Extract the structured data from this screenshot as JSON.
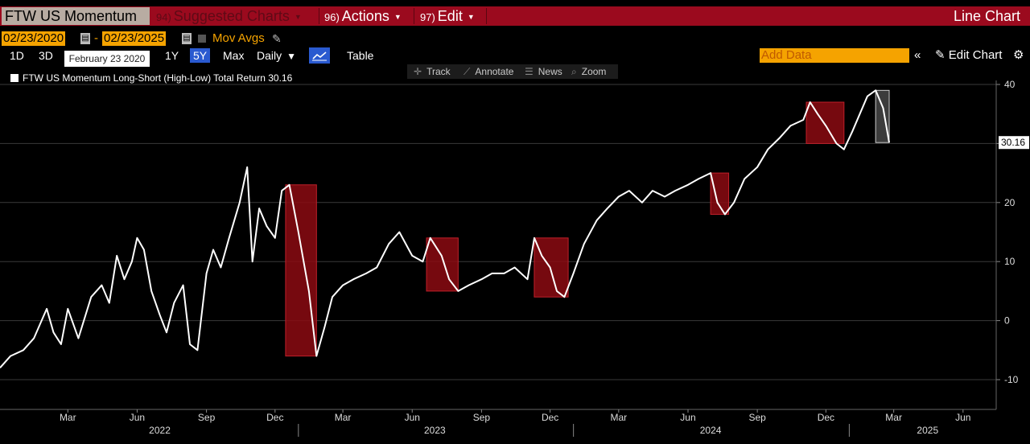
{
  "topbar": {
    "title": "FTW US Momentum",
    "menu": [
      {
        "num": "94)",
        "label": "Suggested Charts",
        "dim": true
      },
      {
        "num": "96)",
        "label": "Actions",
        "dim": false
      },
      {
        "num": "97)",
        "label": "Edit",
        "dim": false
      }
    ],
    "chart_type": "Line Chart"
  },
  "date_range": {
    "start": "02/23/2020",
    "separator": "-",
    "end": "02/23/2025",
    "mov_avgs": "Mov Avgs"
  },
  "tooltip": "February 23 2020",
  "periods": [
    "1D",
    "3D",
    "1Y",
    "5Y",
    "Max"
  ],
  "active_period": "5Y",
  "frequency": "Daily",
  "table_label": "Table",
  "add_data_placeholder": "Add Data",
  "edit_chart": "Edit Chart",
  "tools": [
    "Track",
    "Annotate",
    "News",
    "Zoom"
  ],
  "legend": {
    "label": "FTW US Momentum Long-Short (High-Low) Total Return 30.16"
  },
  "colors": {
    "line": "#ffffff",
    "highlight_fill": "#8b0a12",
    "highlight_line": "#ff9999",
    "last_box": "#cccccc",
    "menu_bg": "#9b0a1e",
    "accent_orange": "#f5a300"
  },
  "chart_data": {
    "type": "line",
    "series": [
      {
        "name": "FTW US Momentum Long-Short (High-Low) Total Return",
        "last_value": 30.16,
        "points": [
          [
            "2021-12-01",
            -8
          ],
          [
            "2021-12-15",
            -6
          ],
          [
            "2022-01-01",
            -5
          ],
          [
            "2022-01-15",
            -3
          ],
          [
            "2022-02-01",
            2
          ],
          [
            "2022-02-10",
            -2
          ],
          [
            "2022-02-20",
            -4
          ],
          [
            "2022-03-01",
            2
          ],
          [
            "2022-03-15",
            -3
          ],
          [
            "2022-04-01",
            4
          ],
          [
            "2022-04-15",
            6
          ],
          [
            "2022-04-25",
            3
          ],
          [
            "2022-05-05",
            11
          ],
          [
            "2022-05-15",
            7
          ],
          [
            "2022-05-25",
            10
          ],
          [
            "2022-06-01",
            14
          ],
          [
            "2022-06-10",
            12
          ],
          [
            "2022-06-20",
            5
          ],
          [
            "2022-07-01",
            1
          ],
          [
            "2022-07-10",
            -2
          ],
          [
            "2022-07-20",
            3
          ],
          [
            "2022-08-01",
            6
          ],
          [
            "2022-08-10",
            -4
          ],
          [
            "2022-08-20",
            -5
          ],
          [
            "2022-09-01",
            8
          ],
          [
            "2022-09-10",
            12
          ],
          [
            "2022-09-20",
            9
          ],
          [
            "2022-10-01",
            14
          ],
          [
            "2022-10-15",
            20
          ],
          [
            "2022-10-25",
            26
          ],
          [
            "2022-11-01",
            10
          ],
          [
            "2022-11-10",
            19
          ],
          [
            "2022-11-20",
            16
          ],
          [
            "2022-12-01",
            14
          ],
          [
            "2022-12-10",
            22
          ],
          [
            "2022-12-20",
            23
          ],
          [
            "2023-01-01",
            15
          ],
          [
            "2023-01-15",
            5
          ],
          [
            "2023-01-25",
            -6
          ],
          [
            "2023-02-05",
            -1
          ],
          [
            "2023-02-15",
            4
          ],
          [
            "2023-03-01",
            6
          ],
          [
            "2023-03-15",
            7
          ],
          [
            "2023-04-01",
            8
          ],
          [
            "2023-04-15",
            9
          ],
          [
            "2023-05-01",
            13
          ],
          [
            "2023-05-15",
            15
          ],
          [
            "2023-06-01",
            11
          ],
          [
            "2023-06-15",
            10
          ],
          [
            "2023-06-25",
            14
          ],
          [
            "2023-07-10",
            11
          ],
          [
            "2023-07-20",
            7
          ],
          [
            "2023-08-01",
            5
          ],
          [
            "2023-08-15",
            6
          ],
          [
            "2023-09-01",
            7
          ],
          [
            "2023-09-15",
            8
          ],
          [
            "2023-10-01",
            8
          ],
          [
            "2023-10-15",
            9
          ],
          [
            "2023-11-01",
            7
          ],
          [
            "2023-11-10",
            14
          ],
          [
            "2023-11-20",
            11
          ],
          [
            "2023-12-01",
            9
          ],
          [
            "2023-12-10",
            5
          ],
          [
            "2023-12-20",
            4
          ],
          [
            "2024-01-01",
            8
          ],
          [
            "2024-01-15",
            13
          ],
          [
            "2024-02-01",
            17
          ],
          [
            "2024-02-15",
            19
          ],
          [
            "2024-03-01",
            21
          ],
          [
            "2024-03-15",
            22
          ],
          [
            "2024-04-01",
            20
          ],
          [
            "2024-04-15",
            22
          ],
          [
            "2024-05-01",
            21
          ],
          [
            "2024-05-15",
            22
          ],
          [
            "2024-06-01",
            23
          ],
          [
            "2024-06-15",
            24
          ],
          [
            "2024-07-01",
            25
          ],
          [
            "2024-07-10",
            20
          ],
          [
            "2024-07-20",
            18
          ],
          [
            "2024-08-01",
            20
          ],
          [
            "2024-08-15",
            24
          ],
          [
            "2024-09-01",
            26
          ],
          [
            "2024-09-15",
            29
          ],
          [
            "2024-10-01",
            31
          ],
          [
            "2024-10-15",
            33
          ],
          [
            "2024-11-01",
            34
          ],
          [
            "2024-11-10",
            37
          ],
          [
            "2024-11-20",
            35
          ],
          [
            "2024-12-01",
            33
          ],
          [
            "2024-12-15",
            30
          ],
          [
            "2024-12-25",
            29
          ],
          [
            "2025-01-05",
            32
          ],
          [
            "2025-01-15",
            35
          ],
          [
            "2025-01-25",
            38
          ],
          [
            "2025-02-05",
            39
          ],
          [
            "2025-02-15",
            36
          ],
          [
            "2025-02-23",
            30.16
          ]
        ]
      }
    ],
    "highlights": [
      [
        "2022-12-15",
        "2023-01-25",
        -6,
        23
      ],
      [
        "2023-06-20",
        "2023-08-01",
        5,
        14
      ],
      [
        "2023-11-10",
        "2023-12-25",
        4,
        14
      ],
      [
        "2024-07-01",
        "2024-07-25",
        18,
        25
      ],
      [
        "2024-11-05",
        "2024-12-25",
        30,
        37
      ],
      [
        "2025-02-05",
        "2025-02-23",
        30.16,
        39
      ]
    ],
    "y_axis": {
      "min": -14,
      "max": 40,
      "ticks": [
        -10,
        0,
        10,
        20,
        30,
        40
      ],
      "side": "right"
    },
    "x_axis": {
      "min": "2021-12-01",
      "max": "2025-07-15",
      "month_ticks": [
        {
          "date": "2022-03-01",
          "label": "Mar"
        },
        {
          "date": "2022-06-01",
          "label": "Jun"
        },
        {
          "date": "2022-09-01",
          "label": "Sep"
        },
        {
          "date": "2022-12-01",
          "label": "Dec"
        },
        {
          "date": "2023-03-01",
          "label": "Mar"
        },
        {
          "date": "2023-06-01",
          "label": "Jun"
        },
        {
          "date": "2023-09-01",
          "label": "Sep"
        },
        {
          "date": "2023-12-01",
          "label": "Dec"
        },
        {
          "date": "2024-03-01",
          "label": "Mar"
        },
        {
          "date": "2024-06-01",
          "label": "Jun"
        },
        {
          "date": "2024-09-01",
          "label": "Sep"
        },
        {
          "date": "2024-12-01",
          "label": "Dec"
        },
        {
          "date": "2025-03-01",
          "label": "Mar"
        },
        {
          "date": "2025-06-01",
          "label": "Jun"
        }
      ],
      "years": [
        {
          "label": "2022",
          "center": "2022-07-01",
          "end": "2023-01-01"
        },
        {
          "label": "2023",
          "center": "2023-07-01",
          "end": "2024-01-01"
        },
        {
          "label": "2024",
          "center": "2024-07-01",
          "end": "2025-01-01"
        },
        {
          "label": "2025",
          "center": "2025-04-15"
        }
      ]
    },
    "grid": true
  }
}
